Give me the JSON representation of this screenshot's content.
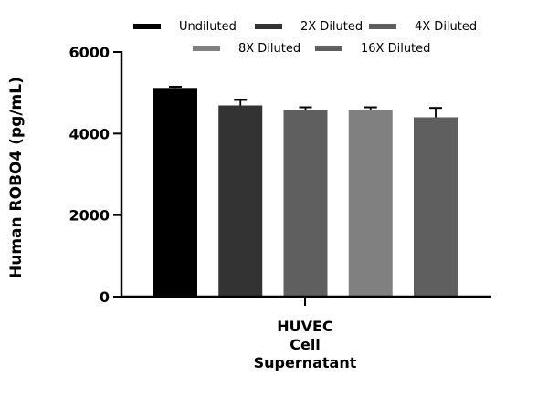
{
  "chart_data": {
    "type": "bar",
    "title": "",
    "xlabel": "HUVEC Cell Supernatant",
    "xlabel_lines": [
      "HUVEC",
      "Cell",
      "Supernatant"
    ],
    "ylabel": "Human ROBO4 (pg/mL)",
    "ylim": [
      0,
      6000
    ],
    "yticks": [
      0,
      2000,
      4000,
      6000
    ],
    "ytick_labels": [
      "0",
      "2000",
      "4000",
      "6000"
    ],
    "grid": false,
    "legend_position": "top",
    "categories": [
      "HUVEC Cell Supernatant"
    ],
    "series": [
      {
        "name": "Undiluted",
        "values": [
          5120
        ],
        "error": [
          30
        ],
        "color": "#000000"
      },
      {
        "name": "2X Diluted",
        "values": [
          4690
        ],
        "error": [
          135
        ],
        "color": "#333333"
      },
      {
        "name": "4X Diluted",
        "values": [
          4590
        ],
        "error": [
          55
        ],
        "color": "#5f5f5f"
      },
      {
        "name": "8X Diluted",
        "values": [
          4590
        ],
        "error": [
          55
        ],
        "color": "#808080"
      },
      {
        "name": "16X Diluted",
        "values": [
          4400
        ],
        "error": [
          230
        ],
        "color": "#5f5f5f"
      }
    ]
  },
  "legend": {
    "items": [
      {
        "label": "Undiluted",
        "color": "#000000"
      },
      {
        "label": "2X Diluted",
        "color": "#333333"
      },
      {
        "label": "4X Diluted",
        "color": "#5f5f5f"
      },
      {
        "label": "8X Diluted",
        "color": "#808080"
      },
      {
        "label": "16X Diluted",
        "color": "#5f5f5f"
      }
    ]
  }
}
